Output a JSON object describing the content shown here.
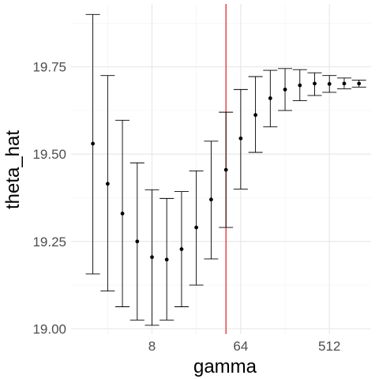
{
  "chart_data": {
    "type": "scatter",
    "title": "",
    "xlabel": "gamma",
    "ylabel": "theta_hat",
    "x_scale": "log2",
    "x_ticks": [
      8,
      64,
      512
    ],
    "x_tick_labels": [
      "8",
      "64",
      "512"
    ],
    "xlim": [
      1.2,
      1360
    ],
    "y_ticks": [
      19.0,
      19.25,
      19.5,
      19.75
    ],
    "y_tick_labels": [
      "19.00",
      "19.25",
      "19.50",
      "19.75"
    ],
    "ylim": [
      18.985,
      19.93
    ],
    "grid": true,
    "vline": {
      "x": 45.3,
      "color": "#e41a1c"
    },
    "point_color": "#000000",
    "series": [
      {
        "x": [
          2,
          2.83,
          4,
          5.66,
          8,
          11.3,
          16,
          22.6,
          32,
          45.3,
          64,
          90.5,
          128,
          181,
          256,
          362,
          512,
          724,
          1024
        ],
        "y": [
          19.53,
          19.415,
          19.33,
          19.25,
          19.205,
          19.198,
          19.228,
          19.29,
          19.37,
          19.455,
          19.545,
          19.612,
          19.66,
          19.685,
          19.697,
          19.702,
          19.701,
          19.702,
          19.702
        ],
        "ymin": [
          19.157,
          19.108,
          19.063,
          19.025,
          19.01,
          19.025,
          19.063,
          19.125,
          19.2,
          19.29,
          19.4,
          19.505,
          19.578,
          19.625,
          19.653,
          19.668,
          19.677,
          19.687,
          19.692
        ],
        "ymax": [
          19.9,
          19.725,
          19.597,
          19.475,
          19.398,
          19.373,
          19.393,
          19.452,
          19.537,
          19.62,
          19.685,
          19.722,
          19.74,
          19.745,
          19.742,
          19.733,
          19.725,
          19.718,
          19.712
        ]
      }
    ]
  }
}
